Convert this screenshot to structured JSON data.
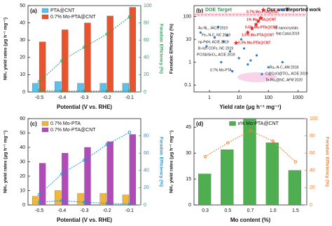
{
  "chart_data": [
    {
      "type": "bar",
      "label": "(a)",
      "categories": [
        "-0.5",
        "-0.4",
        "-0.3",
        "-0.2",
        "-0.1"
      ],
      "series": [
        {
          "name": "PTA@CNT",
          "color": "#5bc0eb",
          "values": [
            5,
            6,
            5,
            5,
            5
          ]
        },
        {
          "name": "0.7% Mo-PTA@CNT",
          "color": "#e8542e",
          "values": [
            29,
            36,
            40,
            44,
            49
          ]
        },
        {
          "color": "#2e9e5b",
          "axis": "y2",
          "values": [
            12,
            36,
            52,
            67,
            87
          ]
        },
        {
          "color": "#2e9e5b",
          "axis": "y2",
          "values": [
            2,
            1,
            1,
            1,
            1
          ]
        }
      ],
      "ylim": [
        0,
        50
      ],
      "yticks": [
        0,
        10,
        20,
        30,
        40,
        50
      ],
      "y2lim": [
        0,
        100
      ],
      "y2ticks": [
        0,
        20,
        40,
        60,
        80,
        100
      ],
      "y2color": "#2e9e5b",
      "xlabel": "Potential (V vs. RHE)",
      "ylabel": "NH₃ yield rates (μg h⁻¹ mg⁻¹)",
      "y2label": "Faradaic Efficiency (%)",
      "legend": "upper left"
    },
    {
      "type": "scatter",
      "label": "(b)",
      "title": "DOE Target",
      "log": true,
      "series": [
        {
          "name": "Our work",
          "color": "#e8262a",
          "marker": "star",
          "x": [
            55,
            45,
            38,
            28,
            20,
            8
          ],
          "y": [
            86,
            62,
            45,
            30,
            20,
            7
          ]
        },
        {
          "name": "Reported work",
          "color": "#2a7fd4",
          "marker": "circle",
          "x": [
            2,
            1.5,
            3,
            5,
            10,
            20,
            0.8,
            40,
            100,
            300,
            6,
            15,
            2.5,
            60,
            0.5,
            12,
            25,
            4
          ],
          "y": [
            35,
            12,
            8,
            3,
            1.5,
            0.8,
            5,
            2,
            0.6,
            1,
            0.4,
            4,
            1,
            0.3,
            20,
            10,
            1.2,
            15
          ]
        }
      ],
      "xlim": [
        0.3,
        2000
      ],
      "ylim": [
        0.05,
        300
      ],
      "xticks": [
        1,
        10,
        100,
        1000
      ],
      "yticks": [
        0.1,
        1,
        10,
        100
      ],
      "xlabel": "Yield rate (μg h⁻¹ mg⁻¹)",
      "ylabel": "Faradaic Efficiency (%)",
      "legend": "upper right",
      "annotations": [
        "Au NL, JACS 2019",
        "Fe₂-N-C, NC 2019",
        "np-PdH, ACIE 2019",
        "B-rich COFs, NC 2019",
        "PC/Sb/SnO₂, ACIE 2019",
        "0.7% Mo-PTA",
        "0.7% Mo-PTA@CNT",
        "1% Mo-PTA@CNT",
        "0.5% Mo-PTA@CNT",
        "1.5% Mo-PTA@CNT",
        "0.3% Mo-PTA@CNT",
        "Bi nanocrystals",
        "Nat.Catal.2019",
        "Ru₁-N-C, AM 2018",
        "C@CoO@TiO₂, ACIE 2019",
        "Te-Ru₁@NC, AFM 2020"
      ]
    },
    {
      "type": "bar",
      "label": "(c)",
      "categories": [
        "-0.5",
        "-0.4",
        "-0.3",
        "-0.2",
        "-0.1"
      ],
      "series": [
        {
          "name": "0.7% Mo-PTA",
          "color": "#f2b63a",
          "values": [
            6,
            10,
            8,
            8,
            7
          ]
        },
        {
          "name": "0.7% Mo-PTA@CNT",
          "color": "#b04bb8",
          "values": [
            29,
            36,
            40,
            44,
            49
          ]
        },
        {
          "color": "#1e90d6",
          "axis": "y2",
          "values": [
            12,
            36,
            52,
            70,
            84
          ]
        },
        {
          "color": "#1e90d6",
          "axis": "y2",
          "values": [
            3,
            5,
            3,
            2,
            1
          ]
        }
      ],
      "ylim": [
        0,
        60
      ],
      "yticks": [
        0,
        10,
        20,
        30,
        40,
        50,
        60
      ],
      "y2lim": [
        0,
        100
      ],
      "y2ticks": [
        0,
        20,
        40,
        60,
        80
      ],
      "y2color": "#1e90d6",
      "xlabel": "Potential (V vs. RHE)",
      "ylabel": "NH₃ yield rates (μg h⁻¹ mg⁻¹)",
      "y2label": "Faradaic Efficiency (%)",
      "legend": "upper left"
    },
    {
      "type": "bar",
      "label": "(d)",
      "categories": [
        "0.3",
        "0.5",
        "0.7",
        "1.0",
        "1.5"
      ],
      "series": [
        {
          "name": "x% Mo-PTA@CNT",
          "color": "#4fae4f",
          "values": [
            18,
            32,
            50,
            36,
            20
          ]
        },
        {
          "color": "#f07f2f",
          "axis": "y2",
          "values": [
            56,
            72,
            86,
            74,
            50
          ]
        }
      ],
      "ylim": [
        0,
        50
      ],
      "yticks": [
        0,
        15,
        30,
        45
      ],
      "y2lim": [
        0,
        100
      ],
      "y2ticks": [
        0,
        20,
        40,
        60,
        80,
        100
      ],
      "y2color": "#f07f2f",
      "xlabel": "Mo content (%)",
      "ylabel": "NH₃ yield rates (μg h⁻¹ mg⁻¹)",
      "y2label": "Faradaic Efficiency (%)",
      "legend": "upper center"
    }
  ]
}
